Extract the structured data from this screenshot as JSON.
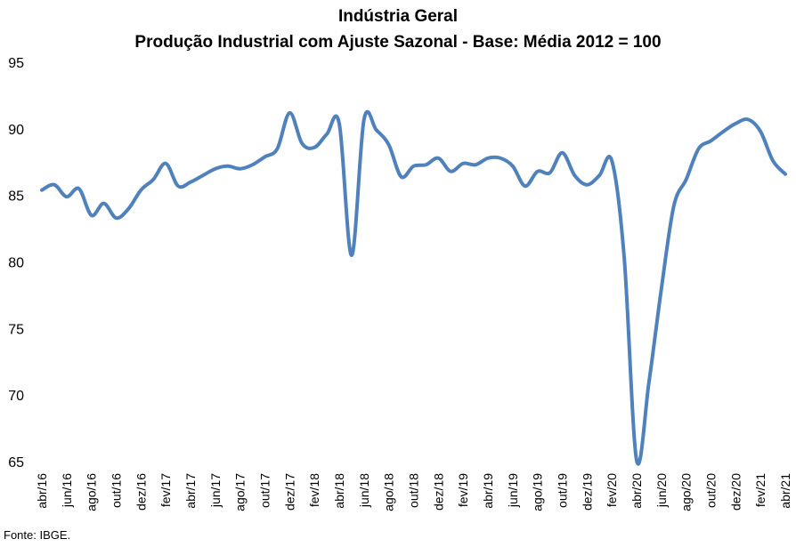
{
  "chart_data": {
    "type": "line",
    "title": "Indústria Geral",
    "subtitle": "Produção Industrial com Ajuste Sazonal - Base: Média 2012 = 100",
    "xlabel": "",
    "ylabel": "",
    "ylim": [
      65,
      95
    ],
    "yticks": [
      65,
      70,
      75,
      80,
      85,
      90,
      95
    ],
    "grid": false,
    "legend": "none",
    "line_color": "#4F81BD",
    "x_tick_labels": [
      "abr/16",
      "jun/16",
      "ago/16",
      "out/16",
      "dez/16",
      "fev/17",
      "abr/17",
      "jun/17",
      "ago/17",
      "out/17",
      "dez/17",
      "fev/18",
      "abr/18",
      "jun/18",
      "ago/18",
      "out/18",
      "dez/18",
      "fev/19",
      "abr/19",
      "jun/19",
      "ago/19",
      "out/19",
      "dez/19",
      "fev/20",
      "abr/20",
      "jun/20",
      "ago/20",
      "out/20",
      "dez/20",
      "fev/21",
      "abr/21"
    ],
    "x": [
      "abr/16",
      "mai/16",
      "jun/16",
      "jul/16",
      "ago/16",
      "set/16",
      "out/16",
      "nov/16",
      "dez/16",
      "jan/17",
      "fev/17",
      "mar/17",
      "abr/17",
      "mai/17",
      "jun/17",
      "jul/17",
      "ago/17",
      "set/17",
      "out/17",
      "nov/17",
      "dez/17",
      "jan/18",
      "fev/18",
      "mar/18",
      "abr/18",
      "mai/18",
      "jun/18",
      "jul/18",
      "ago/18",
      "set/18",
      "out/18",
      "nov/18",
      "dez/18",
      "jan/19",
      "fev/19",
      "mar/19",
      "abr/19",
      "mai/19",
      "jun/19",
      "jul/19",
      "ago/19",
      "set/19",
      "out/19",
      "nov/19",
      "dez/19",
      "jan/20",
      "fev/20",
      "mar/20",
      "abr/20",
      "mai/20",
      "jun/20",
      "jul/20",
      "ago/20",
      "set/20",
      "out/20",
      "nov/20",
      "dez/20",
      "jan/21",
      "fev/21",
      "mar/21",
      "abr/21"
    ],
    "series": [
      {
        "values": [
          85.4,
          85.8,
          84.9,
          85.5,
          83.5,
          84.4,
          83.3,
          84.0,
          85.4,
          86.2,
          87.4,
          85.7,
          86.0,
          86.5,
          87.0,
          87.2,
          87.0,
          87.3,
          87.9,
          88.5,
          91.2,
          88.9,
          88.6,
          89.6,
          90.4,
          80.5,
          90.7,
          89.9,
          88.8,
          86.4,
          87.2,
          87.3,
          87.8,
          86.8,
          87.4,
          87.3,
          87.8,
          87.8,
          87.2,
          85.7,
          86.8,
          86.7,
          88.2,
          86.5,
          85.8,
          86.5,
          87.6,
          80.3,
          65.1,
          71.0,
          78.0,
          84.2,
          86.2,
          88.5,
          89.1,
          89.8,
          90.4,
          90.7,
          89.8,
          87.6,
          86.6
        ]
      }
    ]
  },
  "source": "Fonte: IBGE."
}
